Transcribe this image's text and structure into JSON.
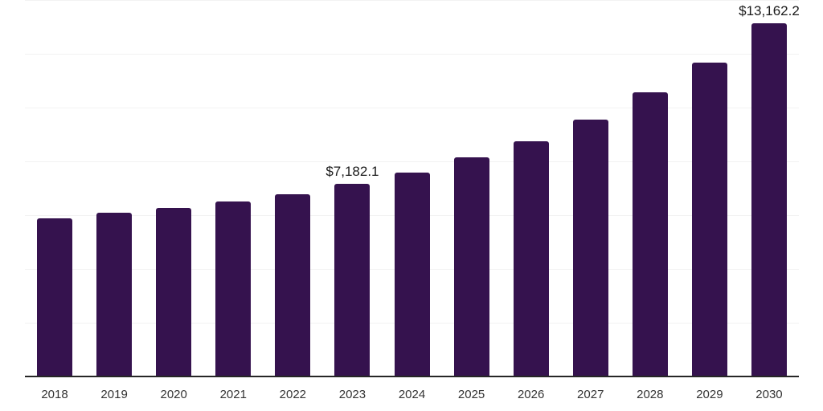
{
  "chart_data": {
    "type": "bar",
    "title": "",
    "xlabel": "",
    "ylabel": "",
    "categories": [
      "2018",
      "2019",
      "2020",
      "2021",
      "2022",
      "2023",
      "2024",
      "2025",
      "2026",
      "2027",
      "2028",
      "2029",
      "2030"
    ],
    "values": [
      5920.0,
      6110.0,
      6310.0,
      6550.0,
      6820.0,
      7182.1,
      7625.0,
      8170.0,
      8790.0,
      9570.0,
      10590.0,
      11710.0,
      13162.2
    ],
    "bar_labels": [
      "",
      "",
      "",
      "",
      "",
      "$7,182.1",
      "",
      "",
      "",
      "",
      "",
      "",
      "$13,162.2"
    ],
    "ylim": [
      0,
      14000
    ],
    "grid_interval": 2000,
    "grid_on": true,
    "legend": "none",
    "bar_color": "#35124e",
    "gridline_color": "#f2f2f2",
    "axis_line_color": "#262626",
    "data_label_color": "#1a1a1a",
    "tick_label_color": "#333333"
  }
}
